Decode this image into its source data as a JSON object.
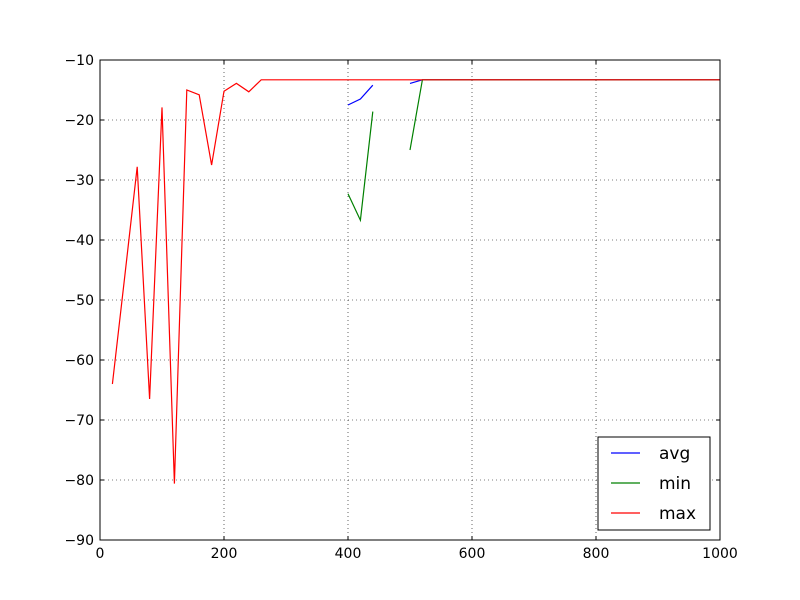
{
  "chart_data": {
    "type": "line",
    "title": "",
    "xlabel": "",
    "ylabel": "",
    "xlim": [
      0,
      1000
    ],
    "ylim": [
      -90,
      -10
    ],
    "xticks": [
      0,
      200,
      400,
      600,
      800,
      1000
    ],
    "yticks": [
      -90,
      -80,
      -70,
      -60,
      -50,
      -40,
      -30,
      -20,
      -10
    ],
    "xtick_labels": [
      "0",
      "200",
      "400",
      "600",
      "800",
      "1000"
    ],
    "ytick_labels": [
      "−90",
      "−80",
      "−70",
      "−60",
      "−50",
      "−40",
      "−30",
      "−20",
      "−10"
    ],
    "grid": true,
    "legend_position": "lower-right",
    "series": [
      {
        "name": "avg",
        "color": "#0000ff",
        "segments": [
          [
            [
              400,
              -17.5
            ],
            [
              420,
              -16.5
            ],
            [
              440,
              -14.2
            ]
          ],
          [
            [
              500,
              -13.9
            ],
            [
              520,
              -13.3
            ],
            [
              1000,
              -13.3
            ]
          ]
        ]
      },
      {
        "name": "min",
        "color": "#008000",
        "segments": [
          [
            [
              400,
              -32.3
            ],
            [
              420,
              -36.7
            ],
            [
              440,
              -18.6
            ]
          ],
          [
            [
              500,
              -25.0
            ],
            [
              520,
              -13.3
            ],
            [
              1000,
              -13.3
            ]
          ]
        ]
      },
      {
        "name": "max",
        "color": "#ff0000",
        "segments": [
          [
            [
              20,
              -64.0
            ],
            [
              40,
              -46.0
            ],
            [
              60,
              -27.8
            ],
            [
              80,
              -66.5
            ],
            [
              100,
              -17.9
            ],
            [
              120,
              -80.6
            ],
            [
              140,
              -15.0
            ],
            [
              160,
              -15.8
            ],
            [
              180,
              -27.5
            ],
            [
              200,
              -15.2
            ],
            [
              220,
              -13.9
            ],
            [
              240,
              -15.3
            ],
            [
              260,
              -13.3
            ],
            [
              1000,
              -13.3
            ]
          ]
        ]
      }
    ]
  }
}
